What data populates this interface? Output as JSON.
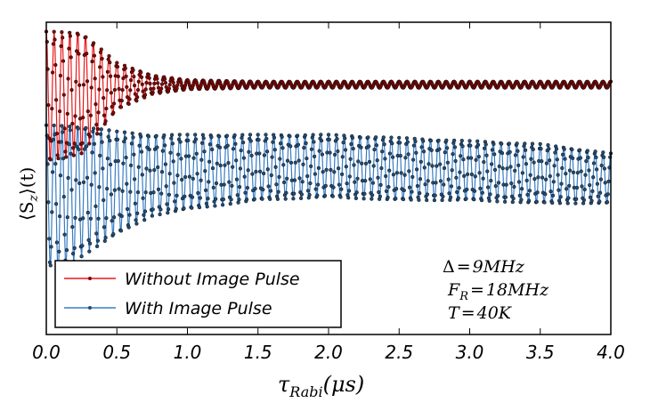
{
  "chart_data": {
    "type": "line",
    "xlabel": "τ_Rabi(μs)",
    "xlabel_main": "τ",
    "xlabel_sub": "Rabi",
    "xlabel_unit": "(μs)",
    "ylabel": "⟨S_z⟩(t)",
    "ylabel_main": "⟨S",
    "ylabel_sub": "z",
    "ylabel_tail": "⟩(t)",
    "xlim": [
      0,
      4.0
    ],
    "ylim": [
      0,
      1
    ],
    "y_tick_labels_shown": false,
    "grid": false,
    "x_ticks": [
      "0.0",
      "0.5",
      "1.0",
      "1.5",
      "2.0",
      "2.5",
      "3.0",
      "3.5",
      "4.0"
    ],
    "legend_position": "bottom-left",
    "oscillation_frequency_MHz": 18,
    "series": [
      {
        "name": "Without Image Pulse",
        "color": "#e8191c",
        "marker_color": "#8b0000",
        "envelope_x": [
          0,
          0.25,
          0.5,
          0.75,
          1.0,
          1.5,
          2.0,
          2.5,
          3.0,
          3.5,
          4.0
        ],
        "envelope_upper": [
          0.97,
          0.97,
          0.87,
          0.83,
          0.815,
          0.81,
          0.81,
          0.81,
          0.81,
          0.81,
          0.81
        ],
        "envelope_lower": [
          0.55,
          0.58,
          0.72,
          0.77,
          0.785,
          0.79,
          0.79,
          0.79,
          0.79,
          0.79,
          0.79
        ]
      },
      {
        "name": "With Image Pulse",
        "color": "#3b7dc4",
        "marker_color": "#1f4e7a",
        "envelope_x": [
          0,
          0.05,
          0.25,
          0.5,
          0.75,
          1.0,
          1.5,
          2.0,
          2.5,
          3.0,
          3.5,
          4.0
        ],
        "envelope_upper": [
          0.67,
          0.67,
          0.67,
          0.65,
          0.64,
          0.64,
          0.64,
          0.64,
          0.63,
          0.62,
          0.61,
          0.58
        ],
        "envelope_lower": [
          0.25,
          0.19,
          0.25,
          0.32,
          0.38,
          0.4,
          0.43,
          0.44,
          0.43,
          0.43,
          0.42,
          0.42
        ]
      }
    ],
    "annotations": {
      "delta": "Δ = 9MHz",
      "delta_parts": [
        "Δ",
        "=",
        "9MHz"
      ],
      "fr": "F_R = 18MHz",
      "fr_parts": [
        "F",
        "R",
        "=",
        "18MHz"
      ],
      "t": "T = 40K",
      "t_parts": [
        "T",
        "=",
        "40K"
      ]
    }
  }
}
